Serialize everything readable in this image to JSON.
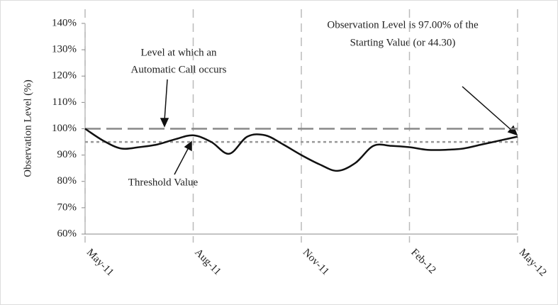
{
  "chart_data": {
    "type": "line",
    "y_axis_label": "Observation Level (%)",
    "categories": [
      "May-11",
      null,
      null,
      null,
      null,
      null,
      "Aug-11",
      null,
      null,
      null,
      null,
      null,
      "Nov-11",
      null,
      null,
      null,
      null,
      null,
      "Feb-12",
      null,
      null,
      null,
      null,
      null,
      "May-12"
    ],
    "series": [
      {
        "color": "#111111",
        "values": [
          100,
          95.5,
          92.5,
          93,
          94,
          96,
          97.5,
          95,
          90.5,
          97,
          97.5,
          94,
          90,
          86.5,
          84,
          87,
          93.5,
          93.5,
          93,
          92,
          92,
          92.5,
          94,
          95.5,
          97
        ]
      }
    ],
    "ylim": [
      60,
      140
    ],
    "yticks": [
      {
        "value": 60,
        "label": "60%"
      },
      {
        "value": 70,
        "label": "70%"
      },
      {
        "value": 80,
        "label": "80%"
      },
      {
        "value": 90,
        "label": "90%"
      },
      {
        "value": 100,
        "label": "100%"
      },
      {
        "value": 110,
        "label": "110%"
      },
      {
        "value": 120,
        "label": "120%"
      },
      {
        "value": 130,
        "label": "130%"
      },
      {
        "value": 140,
        "label": "140%"
      }
    ],
    "reference_lines": [
      {
        "value": 100,
        "color": "#888888",
        "style": "dashed"
      },
      {
        "value": 95,
        "color": "#999999",
        "style": "dotted"
      }
    ],
    "annotations": [
      {
        "lines": [
          "Level at which an",
          "Automatic Call occurs"
        ]
      },
      {
        "lines": [
          "Threshold Value"
        ]
      },
      {
        "lines": [
          "Observation Level is 97.00% of the",
          "Starting Value (or 44.30)"
        ]
      }
    ],
    "x_grid": true
  }
}
